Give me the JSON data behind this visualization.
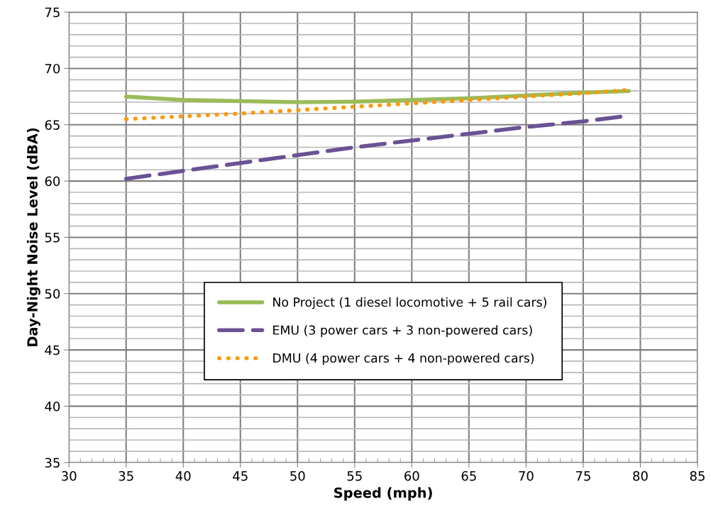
{
  "chart_data": {
    "type": "line",
    "xlabel": "Speed (mph)",
    "ylabel": "Day-Night Noise Level (dBA)",
    "xlim": [
      30,
      85
    ],
    "xticks": [
      30,
      35,
      40,
      45,
      50,
      55,
      60,
      65,
      70,
      75,
      80,
      85
    ],
    "ylim": [
      35,
      75
    ],
    "yticks": [
      35,
      40,
      45,
      50,
      55,
      60,
      65,
      70,
      75
    ],
    "x": [
      35,
      40,
      45,
      50,
      55,
      60,
      65,
      70,
      75,
      79
    ],
    "grid": true,
    "legend": "bottom",
    "marker": "none",
    "series": [
      {
        "name": "No Project (1 diesel locomotive + 5 rail cars)",
        "color": "#9bbb59",
        "line_style": "solid",
        "values": [
          67.5,
          67.2,
          67.1,
          67.0,
          67.05,
          67.2,
          67.35,
          67.6,
          67.85,
          68.0
        ]
      },
      {
        "name": "EMU (3 power cars + 3 non-powered cars)",
        "color": "#6a5294",
        "line_style": "dashed",
        "values": [
          60.2,
          60.9,
          61.6,
          62.3,
          63.0,
          63.6,
          64.2,
          64.8,
          65.3,
          65.8
        ]
      },
      {
        "name": "DMU (4 power cars + 4 non-powered cars)",
        "color": "#ff9900",
        "line_style": "dotted",
        "values": [
          65.5,
          65.75,
          66.0,
          66.3,
          66.6,
          66.9,
          67.2,
          67.5,
          67.8,
          68.1
        ]
      }
    ]
  }
}
